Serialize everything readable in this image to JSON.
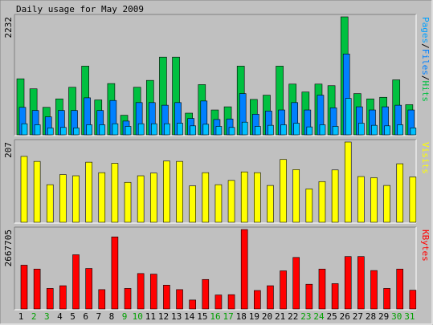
{
  "title": "Daily usage for May 2009",
  "chart_data": [
    {
      "type": "bar",
      "name_label": "Pages/Files/Hits",
      "label_parts": [
        {
          "text": "Pages",
          "color": "#00a0ff"
        },
        {
          "text": "/",
          "color": "#000000"
        },
        {
          "text": "Files",
          "color": "#0080ff"
        },
        {
          "text": "/",
          "color": "#000000"
        },
        {
          "text": "Hits",
          "color": "#00c040"
        }
      ],
      "ymax_label": "2232",
      "ylim": [
        0,
        2232
      ],
      "categories": [
        "1",
        "2",
        "3",
        "4",
        "5",
        "6",
        "7",
        "8",
        "9",
        "10",
        "11",
        "12",
        "13",
        "14",
        "15",
        "16",
        "17",
        "18",
        "19",
        "20",
        "21",
        "22",
        "23",
        "24",
        "25",
        "26",
        "27",
        "28",
        "29",
        "30",
        "31"
      ],
      "series": [
        {
          "name": "Hits",
          "color": "#00c040",
          "values": [
            1060,
            870,
            520,
            680,
            900,
            1300,
            660,
            970,
            370,
            900,
            1030,
            1470,
            1470,
            410,
            950,
            470,
            530,
            1300,
            670,
            750,
            1300,
            960,
            810,
            960,
            930,
            2232,
            780,
            680,
            710,
            1040,
            570
          ]
        },
        {
          "name": "Files",
          "color": "#0080ff",
          "values": [
            520,
            460,
            340,
            460,
            460,
            700,
            460,
            650,
            260,
            610,
            610,
            560,
            610,
            310,
            640,
            290,
            300,
            780,
            390,
            450,
            470,
            610,
            470,
            750,
            510,
            1530,
            530,
            470,
            530,
            560,
            470
          ]
        },
        {
          "name": "Pages",
          "color": "#00c0ff",
          "values": [
            210,
            190,
            130,
            140,
            130,
            190,
            190,
            210,
            160,
            210,
            210,
            210,
            220,
            170,
            200,
            160,
            140,
            240,
            160,
            180,
            190,
            220,
            150,
            190,
            160,
            690,
            220,
            180,
            170,
            190,
            130
          ]
        }
      ]
    },
    {
      "type": "bar",
      "name_label": "Visits",
      "label_parts": [
        {
          "text": "Visits",
          "color": "#ffff00"
        }
      ],
      "ymax_label": "207",
      "ylim": [
        0,
        207
      ],
      "categories": [
        "1",
        "2",
        "3",
        "4",
        "5",
        "6",
        "7",
        "8",
        "9",
        "10",
        "11",
        "12",
        "13",
        "14",
        "15",
        "16",
        "17",
        "18",
        "19",
        "20",
        "21",
        "22",
        "23",
        "24",
        "25",
        "26",
        "27",
        "28",
        "29",
        "30",
        "31"
      ],
      "series": [
        {
          "name": "Visits",
          "color": "#ffff00",
          "values": [
            170,
            157,
            97,
            123,
            120,
            155,
            128,
            152,
            103,
            120,
            127,
            158,
            157,
            94,
            128,
            97,
            108,
            130,
            128,
            95,
            162,
            136,
            86,
            105,
            135,
            207,
            118,
            115,
            95,
            151,
            117
          ]
        }
      ]
    },
    {
      "type": "bar",
      "name_label": "KBytes",
      "label_parts": [
        {
          "text": "KBytes",
          "color": "#ff0000"
        }
      ],
      "ymax_label": "2667705",
      "ylim": [
        0,
        2667705
      ],
      "categories": [
        "1",
        "2",
        "3",
        "4",
        "5",
        "6",
        "7",
        "8",
        "9",
        "10",
        "11",
        "12",
        "13",
        "14",
        "15",
        "16",
        "17",
        "18",
        "19",
        "20",
        "21",
        "22",
        "23",
        "24",
        "25",
        "26",
        "27",
        "28",
        "29",
        "30",
        "31"
      ],
      "series": [
        {
          "name": "KBytes",
          "color": "#ff0000",
          "values": [
            1470000,
            1340000,
            690000,
            780000,
            1820000,
            1360000,
            650000,
            2420000,
            690000,
            1190000,
            1170000,
            800000,
            650000,
            300000,
            990000,
            470000,
            480000,
            2667705,
            620000,
            780000,
            1280000,
            1730000,
            830000,
            1340000,
            850000,
            1760000,
            1760000,
            1290000,
            690000,
            1340000,
            630000
          ]
        }
      ]
    }
  ],
  "day_labels": [
    {
      "text": "1",
      "color": "#000000"
    },
    {
      "text": "2",
      "color": "#00a000"
    },
    {
      "text": "3",
      "color": "#00a000"
    },
    {
      "text": "4",
      "color": "#000000"
    },
    {
      "text": "5",
      "color": "#000000"
    },
    {
      "text": "6",
      "color": "#000000"
    },
    {
      "text": "7",
      "color": "#000000"
    },
    {
      "text": "8",
      "color": "#000000"
    },
    {
      "text": "9",
      "color": "#00a000"
    },
    {
      "text": "10",
      "color": "#00a000"
    },
    {
      "text": "11",
      "color": "#000000"
    },
    {
      "text": "12",
      "color": "#000000"
    },
    {
      "text": "13",
      "color": "#000000"
    },
    {
      "text": "14",
      "color": "#000000"
    },
    {
      "text": "15",
      "color": "#000000"
    },
    {
      "text": "16",
      "color": "#00a000"
    },
    {
      "text": "17",
      "color": "#00a000"
    },
    {
      "text": "18",
      "color": "#000000"
    },
    {
      "text": "19",
      "color": "#000000"
    },
    {
      "text": "20",
      "color": "#000000"
    },
    {
      "text": "21",
      "color": "#000000"
    },
    {
      "text": "22",
      "color": "#000000"
    },
    {
      "text": "23",
      "color": "#00a000"
    },
    {
      "text": "24",
      "color": "#00a000"
    },
    {
      "text": "25",
      "color": "#000000"
    },
    {
      "text": "26",
      "color": "#000000"
    },
    {
      "text": "27",
      "color": "#000000"
    },
    {
      "text": "28",
      "color": "#000000"
    },
    {
      "text": "29",
      "color": "#000000"
    },
    {
      "text": "30",
      "color": "#00a000"
    },
    {
      "text": "31",
      "color": "#00a000"
    }
  ]
}
